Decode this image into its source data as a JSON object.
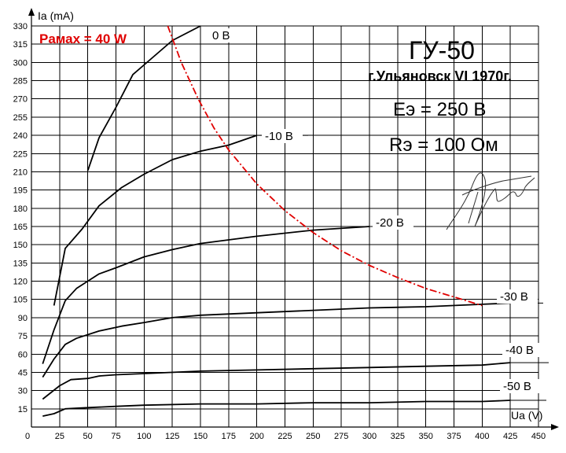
{
  "chart_data": {
    "type": "line",
    "title": "ГУ-50",
    "subtitle": "г.Ульяновск VI 1970г.",
    "annotations": [
      "Eэ = 250 В",
      "Rэ = 100 Ом"
    ],
    "xlabel": "Ua (V)",
    "ylabel": "Ia (mA)",
    "xlim": [
      0,
      450
    ],
    "ylim": [
      0,
      330
    ],
    "x_ticks": [
      0,
      25,
      50,
      75,
      100,
      125,
      150,
      175,
      200,
      225,
      250,
      275,
      300,
      325,
      350,
      375,
      400,
      425,
      450
    ],
    "y_ticks": [
      15,
      30,
      45,
      60,
      75,
      90,
      105,
      120,
      135,
      150,
      165,
      180,
      195,
      210,
      225,
      240,
      255,
      270,
      285,
      300,
      315,
      330
    ],
    "grid": true,
    "series": [
      {
        "name": "0 В",
        "points": [
          [
            50,
            211
          ],
          [
            60,
            238
          ],
          [
            75,
            263
          ],
          [
            90,
            290
          ],
          [
            100,
            298
          ],
          [
            125,
            318
          ],
          [
            150,
            330
          ]
        ]
      },
      {
        "name": "-10 В",
        "points": [
          [
            20,
            100
          ],
          [
            30,
            147
          ],
          [
            45,
            163
          ],
          [
            60,
            182
          ],
          [
            80,
            197
          ],
          [
            100,
            208
          ],
          [
            125,
            220
          ],
          [
            150,
            227
          ],
          [
            175,
            232
          ],
          [
            200,
            240
          ]
        ]
      },
      {
        "name": "-20 В",
        "points": [
          [
            10,
            52
          ],
          [
            20,
            80
          ],
          [
            30,
            104
          ],
          [
            40,
            114
          ],
          [
            60,
            126
          ],
          [
            75,
            131
          ],
          [
            100,
            140
          ],
          [
            125,
            146
          ],
          [
            150,
            151
          ],
          [
            200,
            157
          ],
          [
            250,
            162
          ],
          [
            300,
            165
          ]
        ]
      },
      {
        "name": "-30 В",
        "points": [
          [
            10,
            41
          ],
          [
            20,
            56
          ],
          [
            30,
            68
          ],
          [
            40,
            73
          ],
          [
            60,
            79
          ],
          [
            80,
            83
          ],
          [
            100,
            86
          ],
          [
            125,
            90
          ],
          [
            150,
            92
          ],
          [
            200,
            94
          ],
          [
            250,
            96
          ],
          [
            300,
            98
          ],
          [
            350,
            99
          ],
          [
            400,
            101
          ],
          [
            425,
            102
          ]
        ]
      },
      {
        "name": "-40 В",
        "points": [
          [
            10,
            23
          ],
          [
            25,
            34
          ],
          [
            35,
            39
          ],
          [
            50,
            40
          ],
          [
            60,
            42
          ],
          [
            75,
            43
          ],
          [
            100,
            44
          ],
          [
            150,
            46
          ],
          [
            200,
            47
          ],
          [
            250,
            48
          ],
          [
            300,
            49
          ],
          [
            350,
            50
          ],
          [
            400,
            51
          ],
          [
            425,
            53
          ]
        ]
      },
      {
        "name": "-50 В",
        "points": [
          [
            10,
            9
          ],
          [
            20,
            11
          ],
          [
            30,
            15
          ],
          [
            50,
            16
          ],
          [
            75,
            17
          ],
          [
            100,
            18
          ],
          [
            150,
            19
          ],
          [
            200,
            19
          ],
          [
            250,
            20
          ],
          [
            300,
            20
          ],
          [
            350,
            21
          ],
          [
            400,
            21
          ],
          [
            425,
            22
          ]
        ]
      }
    ],
    "pmax_curve": {
      "label": "Pамах = 40 W",
      "color": "#e00000",
      "style": "dash-dot",
      "points": [
        [
          121,
          330
        ],
        [
          125,
          320
        ],
        [
          133,
          300
        ],
        [
          148,
          270
        ],
        [
          162,
          246
        ],
        [
          175,
          228
        ],
        [
          200,
          200
        ],
        [
          225,
          178
        ],
        [
          250,
          160
        ],
        [
          275,
          145
        ],
        [
          300,
          133
        ],
        [
          325,
          123
        ],
        [
          350,
          114
        ],
        [
          375,
          107
        ],
        [
          400,
          100
        ]
      ]
    },
    "colors": {
      "curves": "#000000",
      "pmax": "#e00000",
      "grid": "#000000"
    }
  }
}
